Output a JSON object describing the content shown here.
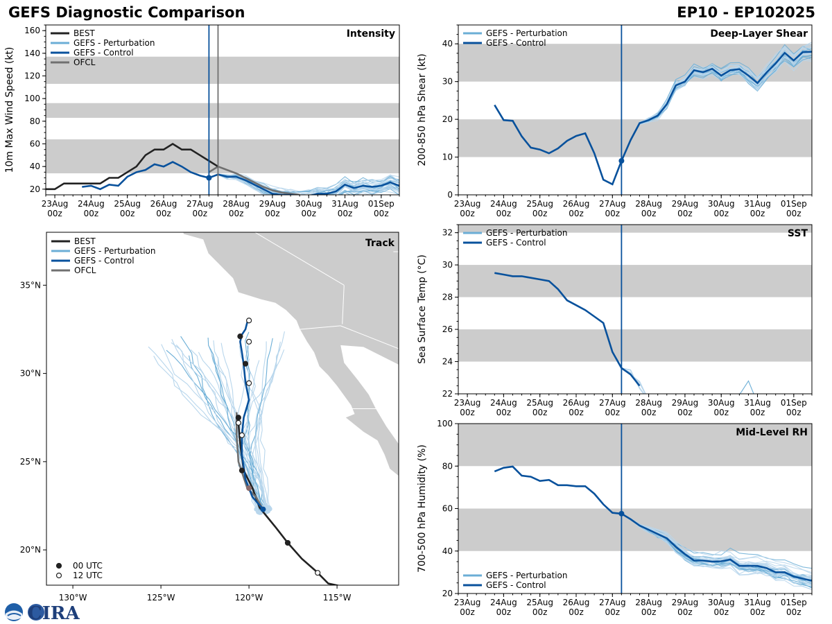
{
  "header": {
    "title": "GEFS Diagnostic Comparison",
    "storm_id": "EP10 - EP102025"
  },
  "colors": {
    "best": "#222222",
    "perturbation": "#6baed6",
    "perturbation_light": "#b8d6ec",
    "control": "#08519c",
    "ofcl": "#707070",
    "band": "#cccccc",
    "land": "#cccccc"
  },
  "logo": {
    "text": "CIRA",
    "agency": "NOAA"
  },
  "time_axis": {
    "ticks": [
      {
        "day": "23Aug",
        "hour": "00z"
      },
      {
        "day": "24Aug",
        "hour": "00z"
      },
      {
        "day": "25Aug",
        "hour": "00z"
      },
      {
        "day": "26Aug",
        "hour": "00z"
      },
      {
        "day": "27Aug",
        "hour": "00z"
      },
      {
        "day": "28Aug",
        "hour": "00z"
      },
      {
        "day": "29Aug",
        "hour": "00z"
      },
      {
        "day": "30Aug",
        "hour": "00z"
      },
      {
        "day": "31Aug",
        "hour": "00z"
      },
      {
        "day": "01Sep",
        "hour": "00z"
      }
    ],
    "range_days": [
      0,
      9.75
    ],
    "init_time_days": 4.5,
    "ofcl_time_days": 4.75
  },
  "chart_data": [
    {
      "id": "intensity",
      "type": "line",
      "title": "Intensity",
      "ylabel": "10m Max Wind Speed (kt)",
      "ylim": [
        15,
        165
      ],
      "yticks": [
        20,
        40,
        60,
        80,
        100,
        120,
        140,
        160
      ],
      "bands": [
        [
          34,
          64
        ],
        [
          83,
          96
        ],
        [
          113,
          137
        ]
      ],
      "legend": [
        "BEST",
        "GEFS - Perturbation",
        "GEFS - Control",
        "OFCL"
      ],
      "best": {
        "x": [
          0,
          0.25,
          0.5,
          0.75,
          1,
          1.25,
          1.5,
          1.75,
          2,
          2.25,
          2.5,
          2.75,
          3,
          3.25,
          3.5,
          3.75,
          4,
          4.25,
          4.5,
          4.75
        ],
        "y": [
          20,
          20,
          25,
          25,
          25,
          25,
          25,
          30,
          30,
          35,
          40,
          50,
          55,
          55,
          60,
          55,
          55,
          50,
          45,
          40
        ]
      },
      "ofcl": {
        "x": [
          4.5,
          4.75,
          5,
          5.25,
          5.5,
          5.75,
          6,
          6.25,
          6.5,
          6.75,
          7
        ],
        "y": [
          35,
          40,
          37,
          34,
          30,
          26,
          22,
          19,
          17,
          16,
          15
        ]
      },
      "control": {
        "x": [
          1,
          1.25,
          1.5,
          1.75,
          2,
          2.25,
          2.5,
          2.75,
          3,
          3.25,
          3.5,
          3.75,
          4,
          4.25,
          4.5,
          4.75,
          5,
          5.25,
          5.5,
          5.75,
          6,
          6.25,
          6.5,
          6.75,
          7,
          7.25,
          7.5,
          7.75,
          8,
          8.25,
          8.5,
          8.75,
          9,
          9.25,
          9.5,
          9.75
        ],
        "y": [
          22,
          23,
          20,
          24,
          23,
          31,
          35,
          37,
          42,
          40,
          44,
          40,
          35,
          32,
          30,
          33,
          31,
          31,
          28,
          24,
          20,
          16,
          15,
          15,
          14,
          14,
          16,
          16,
          18,
          24,
          21,
          23,
          22,
          23,
          26,
          23
        ]
      },
      "control_init": {
        "x": 4.5,
        "y": 30
      }
    },
    {
      "id": "shear",
      "type": "line",
      "title": "Deep-Layer Shear",
      "ylabel": "200-850 hPa Shear (kt)",
      "ylim": [
        0,
        45
      ],
      "yticks": [
        0,
        10,
        20,
        30,
        40
      ],
      "bands": [
        [
          10,
          20
        ],
        [
          30,
          40
        ]
      ],
      "legend": [
        "GEFS - Perturbation",
        "GEFS - Control"
      ],
      "control": {
        "x": [
          1,
          1.25,
          1.5,
          1.75,
          2,
          2.25,
          2.5,
          2.75,
          3,
          3.25,
          3.5,
          3.75,
          4,
          4.25,
          4.5,
          4.75,
          5,
          5.25,
          5.5,
          5.75,
          6,
          6.25,
          6.5,
          6.75,
          7,
          7.25,
          7.5,
          7.75,
          8,
          8.25,
          8.5,
          8.75,
          9,
          9.25,
          9.5,
          9.75
        ],
        "y": [
          23.8,
          19.8,
          19.6,
          15.5,
          12.5,
          12,
          11,
          12.3,
          14.3,
          15.6,
          16.3,
          11,
          4,
          2.8,
          9,
          14.5,
          19,
          19.8,
          21,
          24,
          29,
          30,
          33,
          32.5,
          33.4,
          31.6,
          33,
          33.3,
          31.6,
          29.6,
          32.4,
          34.8,
          37.6,
          35.6,
          37.8,
          37.9
        ]
      },
      "control_init": {
        "x": 4.5,
        "y": 9
      }
    },
    {
      "id": "sst",
      "type": "line",
      "title": "SST",
      "ylabel": "Sea Surface Temp (°C)",
      "ylim": [
        22,
        32.5
      ],
      "yticks": [
        22,
        24,
        26,
        28,
        30,
        32
      ],
      "bands": [
        [
          24,
          26
        ],
        [
          28,
          30
        ],
        [
          32,
          34
        ]
      ],
      "legend": [
        "GEFS - Perturbation",
        "GEFS - Control"
      ],
      "control": {
        "x": [
          1,
          1.25,
          1.5,
          1.75,
          2,
          2.25,
          2.5,
          2.75,
          3,
          3.25,
          3.5,
          3.75,
          4,
          4.25,
          4.5,
          4.75,
          5
        ],
        "y": [
          29.5,
          29.4,
          29.3,
          29.3,
          29.2,
          29.1,
          29,
          28.5,
          27.8,
          27.5,
          27.2,
          26.8,
          26.4,
          24.6,
          23.6,
          23.2,
          22.5
        ]
      }
    },
    {
      "id": "rh",
      "type": "line",
      "title": "Mid-Level RH",
      "ylabel": "700-500 hPa Humidity (%)",
      "ylim": [
        20,
        100
      ],
      "yticks": [
        20,
        40,
        60,
        80,
        100
      ],
      "bands": [
        [
          40,
          60
        ],
        [
          80,
          100
        ]
      ],
      "legend": [
        "GEFS - Perturbation",
        "GEFS - Control"
      ],
      "control": {
        "x": [
          1,
          1.25,
          1.5,
          1.75,
          2,
          2.25,
          2.5,
          2.75,
          3,
          3.25,
          3.5,
          3.75,
          4,
          4.25,
          4.5,
          4.75,
          5,
          5.25,
          5.5,
          5.75,
          6,
          6.25,
          6.5,
          6.75,
          7,
          7.25,
          7.5,
          7.75,
          8,
          8.25,
          8.5,
          8.75,
          9,
          9.25,
          9.5,
          9.75
        ],
        "y": [
          77.5,
          79.2,
          79.8,
          75.5,
          75,
          73,
          73.5,
          71,
          71,
          70.5,
          70.5,
          67,
          62,
          58,
          57.6,
          55,
          52,
          50,
          48,
          46,
          42,
          38.5,
          35.5,
          35.5,
          35,
          35.2,
          36,
          33,
          33,
          33,
          32,
          30,
          30,
          28,
          27,
          26
        ]
      },
      "control_init": {
        "x": 4.5,
        "y": 57.6
      }
    },
    {
      "id": "track",
      "type": "scatter",
      "title": "Track",
      "lon_range": [
        -131.5,
        -111.5
      ],
      "lat_range": [
        18,
        38
      ],
      "xticks": [
        {
          "lon": -130,
          "label": "130°W"
        },
        {
          "lon": -125,
          "label": "125°W"
        },
        {
          "lon": -120,
          "label": "120°W"
        },
        {
          "lon": -115,
          "label": "115°W"
        }
      ],
      "yticks": [
        {
          "lat": 20,
          "label": "20°N"
        },
        {
          "lat": 25,
          "label": "25°N"
        },
        {
          "lat": 30,
          "label": "30°N"
        },
        {
          "lat": 35,
          "label": "35°N"
        }
      ],
      "legend": [
        "BEST",
        "GEFS - Perturbation",
        "GEFS - Control",
        "OFCL"
      ],
      "markers_legend": [
        "00 UTC",
        "12 UTC"
      ],
      "best": {
        "lon": [
          -114.6,
          -115.5,
          -116.2,
          -117,
          -117.8,
          -118.5,
          -119.4,
          -119.8,
          -120.3,
          -120.5,
          -120.6,
          -120.6
        ],
        "lat": [
          17.9,
          18.1,
          18.8,
          19.5,
          20.4,
          21.3,
          22.4,
          23.5,
          24.5,
          26.0,
          27.2,
          27.5
        ]
      },
      "best_00z": {
        "lon": [
          -117.8,
          -120.4,
          -120.6
        ],
        "lat": [
          20.4,
          24.5,
          27.5
        ]
      },
      "best_12z": {
        "lon": [
          -116.1,
          -120.6
        ],
        "lat": [
          18.7,
          27.2
        ]
      },
      "ofcl": {
        "lon": [
          -119.2,
          -119.6,
          -120.1,
          -120.6,
          -120.7,
          -120.7
        ],
        "lat": [
          22.3,
          23.0,
          23.5,
          25.0,
          26.5,
          27.8
        ]
      },
      "control": {
        "lon": [
          -119.2,
          -119.8,
          -120.2,
          -120.4,
          -120.4,
          -120.3,
          -120.0,
          -120.2,
          -120.3,
          -120.4,
          -120.5,
          -120.4,
          -120.2,
          -120.1
        ],
        "lat": [
          22.3,
          23.0,
          24.0,
          25.4,
          26.5,
          27.5,
          28.5,
          29.5,
          30.5,
          31.2,
          31.8,
          32.2,
          32.5,
          32.9
        ]
      },
      "control_00z": {
        "lon": [
          -120.2,
          -120.5
        ],
        "lat": [
          30.55,
          32.1
        ]
      },
      "control_12z": {
        "lon": [
          -120.4,
          -120.0,
          -120.0,
          -120.0
        ],
        "lat": [
          26.5,
          29.45,
          31.8,
          33.0
        ]
      }
    }
  ]
}
